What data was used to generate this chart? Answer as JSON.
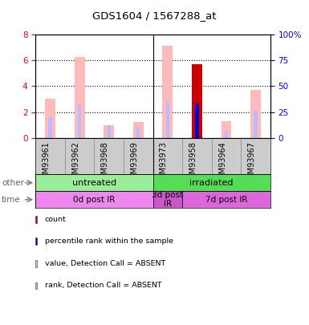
{
  "title": "GDS1604 / 1567288_at",
  "samples": [
    "GSM93961",
    "GSM93962",
    "GSM93968",
    "GSM93969",
    "GSM93973",
    "GSM93958",
    "GSM93964",
    "GSM93967"
  ],
  "value_absent": [
    3.0,
    6.25,
    1.0,
    1.2,
    7.1,
    null,
    1.3,
    3.7
  ],
  "rank_absent": [
    20,
    32,
    12,
    10,
    35,
    null,
    7,
    27
  ],
  "count_present": [
    null,
    null,
    null,
    null,
    null,
    5.7,
    null,
    null
  ],
  "rank_present": [
    null,
    null,
    null,
    null,
    null,
    33,
    null,
    null
  ],
  "ylim_left": [
    0,
    8
  ],
  "ylim_right": [
    0,
    100
  ],
  "yticks_left": [
    0,
    2,
    4,
    6,
    8
  ],
  "ytick_labels_left": [
    "0",
    "2",
    "4",
    "6",
    "8"
  ],
  "yticks_right": [
    0,
    25,
    50,
    75,
    100
  ],
  "ytick_labels_right": [
    "0",
    "25",
    "50",
    "75",
    "100%"
  ],
  "groups_other": [
    {
      "label": "untreated",
      "start": 0,
      "end": 4,
      "color": "#99ee99"
    },
    {
      "label": "irradiated",
      "start": 4,
      "end": 8,
      "color": "#55dd55"
    }
  ],
  "groups_time": [
    {
      "label": "0d post IR",
      "start": 0,
      "end": 4,
      "color": "#ee88ee"
    },
    {
      "label": "3d post\nIR",
      "start": 4,
      "end": 5,
      "color": "#cc55cc"
    },
    {
      "label": "7d post IR",
      "start": 5,
      "end": 8,
      "color": "#dd66dd"
    }
  ],
  "color_count": "#cc0000",
  "color_rank_present": "#0000cc",
  "color_value_absent": "#ffbbbb",
  "color_rank_absent": "#bbbbff",
  "bg_color": "#cccccc",
  "bar_area_bg": "#ffffff",
  "legend_items": [
    {
      "color": "#cc0000",
      "label": "count"
    },
    {
      "color": "#0000cc",
      "label": "percentile rank within the sample"
    },
    {
      "color": "#ffbbbb",
      "label": "value, Detection Call = ABSENT"
    },
    {
      "color": "#bbbbff",
      "label": "rank, Detection Call = ABSENT"
    }
  ]
}
